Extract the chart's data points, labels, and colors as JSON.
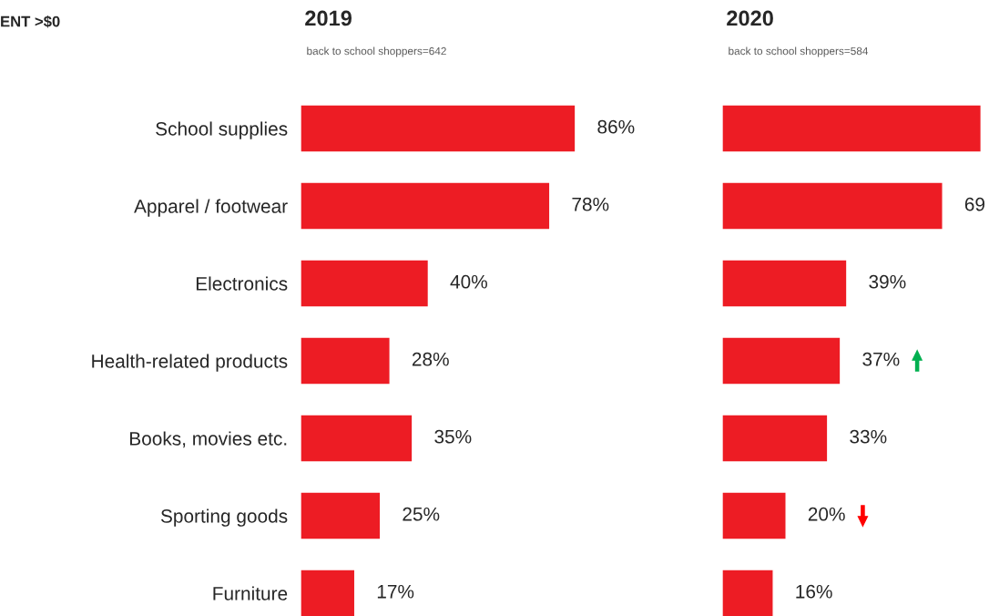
{
  "chart_data": [
    {
      "type": "bar",
      "orientation": "horizontal",
      "title": "2019",
      "subtitle": "back to school shoppers=642",
      "annotations": [
        "ENT >$0"
      ],
      "categories": [
        "School supplies",
        "Apparel / footwear",
        "Electronics",
        "Health-related products",
        "Books, movies etc.",
        "Sporting goods",
        "Furniture"
      ],
      "values": [
        86,
        78,
        40,
        28,
        35,
        25,
        17
      ],
      "color": "#ed1c24",
      "value_labels": [
        "86%",
        "78%",
        "40%",
        "28%",
        "35%",
        "25%",
        "17%"
      ],
      "tick_labels": "y"
    },
    {
      "type": "bar",
      "orientation": "horizontal",
      "title": "2020",
      "subtitle": "back to school shoppers=584",
      "categories": [
        null,
        null,
        null,
        null,
        null,
        null,
        null
      ],
      "values": [
        81,
        69,
        39,
        37,
        33,
        20,
        16
      ],
      "color": "#ed1c24",
      "value_labels": [
        null,
        "69",
        "39%",
        "37%",
        "33%",
        "20%",
        "16%"
      ],
      "tick_labels": false
    }
  ]
}
